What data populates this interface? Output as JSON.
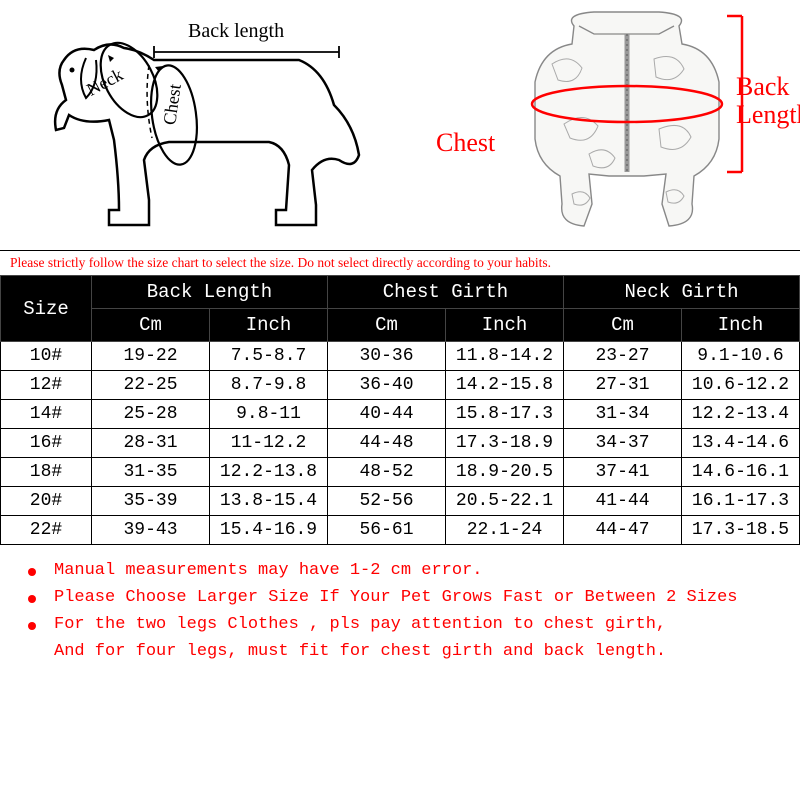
{
  "diagram": {
    "dog_labels": {
      "back_length": "Back length",
      "neck": "Neck",
      "chest": "Chest"
    },
    "jacket_labels": {
      "chest": "Chest",
      "back_length_1": "Back",
      "back_length_2": "Length"
    },
    "label_color": "#ff0000"
  },
  "warning_text": "Please strictly follow the size chart to select the size. Do not select directly according to your habits.",
  "table": {
    "header_bg": "#000000",
    "header_fg": "#ffffff",
    "border_color": "#000000",
    "font_family": "Courier New, monospace",
    "cell_fontsize": 18,
    "headers": {
      "size": "Size",
      "groups": [
        "Back Length",
        "Chest Girth",
        "Neck Girth"
      ],
      "subs": [
        "Cm",
        "Inch"
      ]
    },
    "rows": [
      {
        "size": "10#",
        "bl_cm": "19-22",
        "bl_in": "7.5-8.7",
        "cg_cm": "30-36",
        "cg_in": "11.8-14.2",
        "ng_cm": "23-27",
        "ng_in": "9.1-10.6"
      },
      {
        "size": "12#",
        "bl_cm": "22-25",
        "bl_in": "8.7-9.8",
        "cg_cm": "36-40",
        "cg_in": "14.2-15.8",
        "ng_cm": "27-31",
        "ng_in": "10.6-12.2"
      },
      {
        "size": "14#",
        "bl_cm": "25-28",
        "bl_in": "9.8-11",
        "cg_cm": "40-44",
        "cg_in": "15.8-17.3",
        "ng_cm": "31-34",
        "ng_in": "12.2-13.4"
      },
      {
        "size": "16#",
        "bl_cm": "28-31",
        "bl_in": "11-12.2",
        "cg_cm": "44-48",
        "cg_in": "17.3-18.9",
        "ng_cm": "34-37",
        "ng_in": "13.4-14.6"
      },
      {
        "size": "18#",
        "bl_cm": "31-35",
        "bl_in": "12.2-13.8",
        "cg_cm": "48-52",
        "cg_in": "18.9-20.5",
        "ng_cm": "37-41",
        "ng_in": "14.6-16.1"
      },
      {
        "size": "20#",
        "bl_cm": "35-39",
        "bl_in": "13.8-15.4",
        "cg_cm": "52-56",
        "cg_in": "20.5-22.1",
        "ng_cm": "41-44",
        "ng_in": "16.1-17.3"
      },
      {
        "size": "22#",
        "bl_cm": "39-43",
        "bl_in": "15.4-16.9",
        "cg_cm": "56-61",
        "cg_in": "22.1-24",
        "ng_cm": "44-47",
        "ng_in": "17.3-18.5"
      }
    ]
  },
  "notes": {
    "bullet_color": "#ff0000",
    "text_color": "#ff0000",
    "lines": [
      {
        "bullet": true,
        "text": "Manual measurements may have 1-2 cm error."
      },
      {
        "bullet": true,
        "text": "Please Choose Larger Size If Your Pet Grows Fast or Between 2 Sizes"
      },
      {
        "bullet": true,
        "text": "For the two legs Clothes , pls pay attention to chest girth,"
      },
      {
        "bullet": false,
        "text": "And for four legs, must fit for chest girth and back length."
      }
    ]
  }
}
